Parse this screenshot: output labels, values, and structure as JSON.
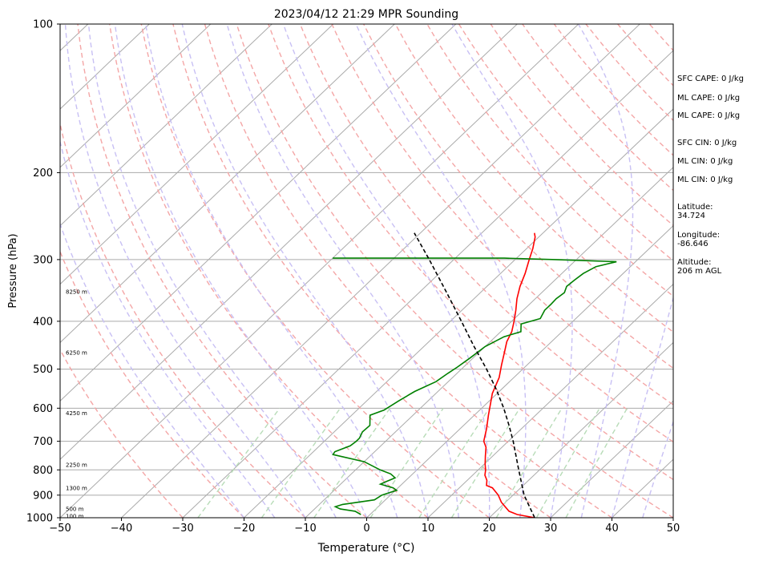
{
  "chart_data": {
    "type": "line",
    "title": "2023/04/12 21:29 MPR Sounding",
    "xlabel": "Temperature (°C)",
    "ylabel": "Pressure (hPa)",
    "xlim": [
      -50,
      50
    ],
    "ylim": [
      1000,
      100
    ],
    "y_scale": "log",
    "x_ticks": [
      -50,
      -40,
      -30,
      -20,
      -10,
      0,
      10,
      20,
      30,
      40,
      50
    ],
    "y_ticks": [
      1000,
      900,
      800,
      700,
      600,
      500,
      400,
      300,
      200,
      100
    ],
    "height_labels": [
      {
        "text": "100 m",
        "p": 990
      },
      {
        "text": "500 m",
        "p": 958
      },
      {
        "text": "1300 m",
        "p": 870
      },
      {
        "text": "2250 m",
        "p": 780
      },
      {
        "text": "4250 m",
        "p": 613
      },
      {
        "text": "6250 m",
        "p": 462
      },
      {
        "text": "8250 m",
        "p": 348
      }
    ],
    "series": [
      {
        "color": "#ff0000",
        "data": [
          [
            1000,
            27.4
          ],
          [
            985,
            24.0
          ],
          [
            970,
            22.1
          ],
          [
            950,
            20.7
          ],
          [
            930,
            19.3
          ],
          [
            900,
            17.6
          ],
          [
            870,
            15.4
          ],
          [
            860,
            14.0
          ],
          [
            840,
            13.2
          ],
          [
            820,
            12.0
          ],
          [
            800,
            11.2
          ],
          [
            780,
            10.2
          ],
          [
            750,
            8.8
          ],
          [
            720,
            7.4
          ],
          [
            700,
            6.0
          ],
          [
            660,
            4.3
          ],
          [
            620,
            2.3
          ],
          [
            590,
            0.8
          ],
          [
            560,
            -0.8
          ],
          [
            520,
            -2.4
          ],
          [
            490,
            -4.2
          ],
          [
            460,
            -6.0
          ],
          [
            440,
            -7.3
          ],
          [
            420,
            -8.2
          ],
          [
            400,
            -9.6
          ],
          [
            380,
            -11.2
          ],
          [
            360,
            -13.0
          ],
          [
            340,
            -14.6
          ],
          [
            320,
            -16.0
          ],
          [
            300,
            -17.7
          ],
          [
            285,
            -19.0
          ],
          [
            270,
            -20.6
          ],
          [
            265,
            -21.4
          ]
        ]
      },
      {
        "color": "#008000",
        "data": [
          [
            985,
            -1.5
          ],
          [
            970,
            -3.0
          ],
          [
            960,
            -5.8
          ],
          [
            950,
            -7.0
          ],
          [
            940,
            -6.2
          ],
          [
            920,
            -1.8
          ],
          [
            900,
            -1.4
          ],
          [
            880,
            0.2
          ],
          [
            870,
            -0.8
          ],
          [
            855,
            -3.5
          ],
          [
            845,
            -3.0
          ],
          [
            830,
            -2.2
          ],
          [
            815,
            -3.6
          ],
          [
            800,
            -6.0
          ],
          [
            770,
            -10.0
          ],
          [
            745,
            -16.3
          ],
          [
            735,
            -16.5
          ],
          [
            715,
            -15.0
          ],
          [
            700,
            -14.8
          ],
          [
            690,
            -14.8
          ],
          [
            670,
            -15.4
          ],
          [
            650,
            -15.3
          ],
          [
            620,
            -17.0
          ],
          [
            605,
            -15.6
          ],
          [
            580,
            -14.8
          ],
          [
            555,
            -13.8
          ],
          [
            530,
            -12.0
          ],
          [
            510,
            -11.5
          ],
          [
            495,
            -11.0
          ],
          [
            475,
            -10.5
          ],
          [
            450,
            -10.0
          ],
          [
            430,
            -8.6
          ],
          [
            420,
            -6.7
          ],
          [
            405,
            -8.0
          ],
          [
            395,
            -5.8
          ],
          [
            380,
            -6.5
          ],
          [
            370,
            -6.5
          ],
          [
            360,
            -6.6
          ],
          [
            350,
            -6.3
          ],
          [
            340,
            -7.0
          ],
          [
            330,
            -6.8
          ],
          [
            320,
            -6.5
          ],
          [
            310,
            -5.6
          ],
          [
            303,
            -3.1
          ],
          [
            300,
            -13.4
          ],
          [
            298,
            -22.0
          ],
          [
            298,
            -50.0
          ]
        ]
      },
      {
        "color": "#000000",
        "dash": true,
        "data": [
          [
            1000,
            27.4
          ],
          [
            900,
            21.8
          ],
          [
            800,
            16.6
          ],
          [
            700,
            10.8
          ],
          [
            650,
            7.4
          ],
          [
            600,
            3.6
          ],
          [
            550,
            -0.8
          ],
          [
            500,
            -5.9
          ],
          [
            450,
            -11.8
          ],
          [
            400,
            -18.2
          ],
          [
            350,
            -25.5
          ],
          [
            300,
            -34.0
          ],
          [
            265,
            -41.0
          ]
        ]
      }
    ]
  },
  "stats": [
    {
      "label": "SFC CAPE:",
      "value": "0 J/kg"
    },
    {
      "label": "ML CAPE:",
      "value": "0 J/kg"
    },
    {
      "label": "ML CAPE:",
      "value": "0 J/kg"
    },
    {
      "label": "SFC CIN:",
      "value": "0 J/kg"
    },
    {
      "label": "ML CIN:",
      "value": "0 J/kg"
    },
    {
      "label": "ML CIN:",
      "value": "0 J/kg"
    }
  ],
  "location": {
    "latitude_label": "Latitude:",
    "latitude": "34.724",
    "longitude_label": "Longitude:",
    "longitude": "-86.646",
    "altitude_label": "Altitude:",
    "altitude": "206 m AGL"
  }
}
